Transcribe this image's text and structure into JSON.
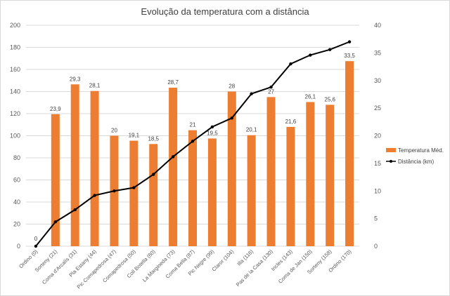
{
  "chart_data": {
    "type": "bar+line",
    "title": "Evolução da temperatura com a distância",
    "categories": [
      "Ordino (0)",
      "Sorteny (21)",
      "Coma d'Arcalís (31)",
      "Pla Estany (44)",
      "Pic Comapedrosa (47)",
      "Comapedrosa (50)",
      "Coll Botella (60)",
      "La Margineda (73)",
      "Coma Bella (87)",
      "Pic Negre (99)",
      "Claror (104)",
      "Illa (116)",
      "Pas de la Casa (130)",
      "Incles (143)",
      "Coma de Jan (150)",
      "Sorteny (158)",
      "Ordino (170)"
    ],
    "series": [
      {
        "name": "Temperatura Méd.",
        "kind": "bar",
        "axis": "left",
        "color": "#ED7D31",
        "values": [
          0,
          23.9,
          29.3,
          28.1,
          20,
          19.1,
          18.5,
          28.7,
          21,
          19.5,
          28,
          20.1,
          27,
          21.6,
          26.1,
          25.6,
          33.5
        ],
        "labels": [
          "0",
          "23,9",
          "29,3",
          "28,1",
          "20",
          "19,1",
          "18,5",
          "28,7",
          "21",
          "19,5",
          "28",
          "20,1",
          "27",
          "21,6",
          "26,1",
          "25,6",
          "33,5"
        ],
        "scale_factor": 5
      },
      {
        "name": "Distância (km)",
        "kind": "line",
        "axis": "right",
        "color": "#000000",
        "values": [
          0,
          4.4,
          6.6,
          9.2,
          10,
          10.6,
          13,
          16.2,
          19,
          21.6,
          23.2,
          27.6,
          28.8,
          33,
          34.6,
          35.6,
          37
        ]
      }
    ],
    "y_left": {
      "ticks": [
        "0",
        "20",
        "40",
        "60",
        "80",
        "100",
        "120",
        "140",
        "160",
        "180",
        "200"
      ],
      "range": [
        0,
        200
      ]
    },
    "y_right": {
      "ticks": [
        "0",
        "5",
        "10",
        "15",
        "20",
        "25",
        "30",
        "35",
        "40"
      ],
      "range": [
        0,
        40
      ]
    },
    "legend_position": "right"
  }
}
